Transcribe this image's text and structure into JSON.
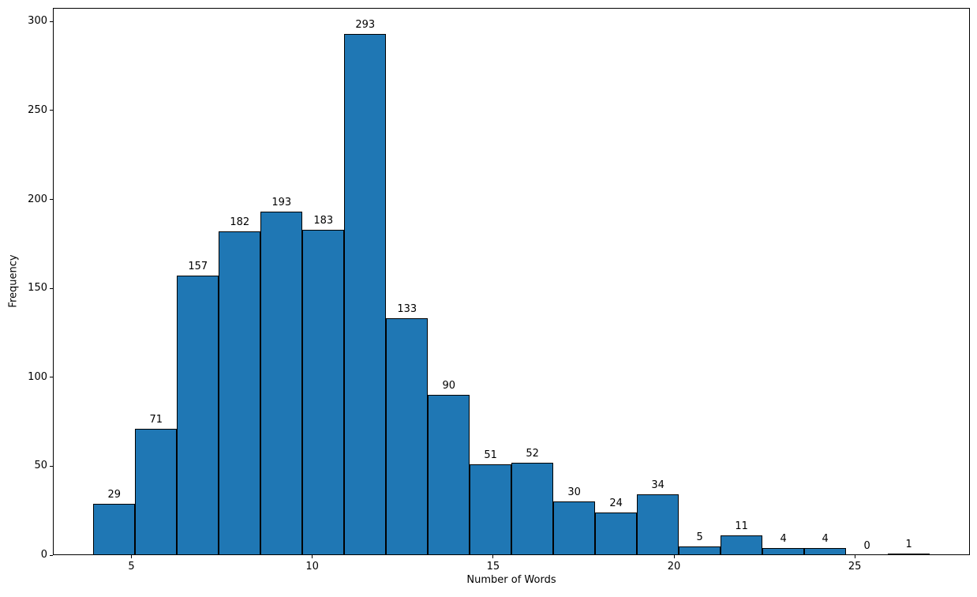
{
  "figure": {
    "background": "#ffffff"
  },
  "chart_data": {
    "type": "bar",
    "subtype": "histogram",
    "title": "",
    "xlabel": "Number of Words",
    "ylabel": "Frequency",
    "bin_start": 3.95,
    "bin_width": 1.156,
    "values": [
      29,
      71,
      157,
      182,
      193,
      183,
      293,
      133,
      90,
      51,
      52,
      30,
      24,
      34,
      5,
      11,
      4,
      4,
      0,
      1
    ],
    "xticks": [
      5,
      10,
      15,
      20,
      25
    ],
    "yticks": [
      0,
      50,
      100,
      150,
      200,
      250,
      300
    ],
    "xlim": [
      2.83,
      28.18
    ],
    "ylim": [
      0,
      307.65
    ],
    "grid": false,
    "legend_position": "none",
    "bar_color": "#1f77b4",
    "bar_edge_color": "#000000",
    "text_color": "#000000"
  }
}
